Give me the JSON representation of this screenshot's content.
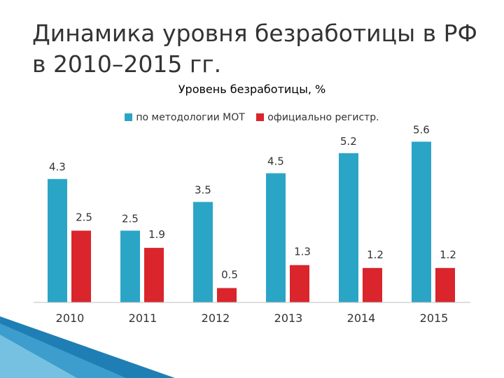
{
  "slide_title": "Динамика уровня безработицы в РФ в 2010–2015 гг.",
  "colors": {
    "series1": "#2ba5c6",
    "series2": "#d9252b",
    "axis": "#bfbfbf",
    "decoration": "#1f7fb4"
  },
  "chart_data": {
    "type": "bar",
    "title": "Уровень безработицы, %",
    "xlabel": "",
    "ylabel": "",
    "categories": [
      "2010",
      "2011",
      "2012",
      "2013",
      "2014",
      "2015"
    ],
    "series": [
      {
        "name": "по методологии МОТ",
        "values": [
          4.3,
          2.5,
          3.5,
          4.5,
          5.2,
          5.6
        ]
      },
      {
        "name": "официально регистр.",
        "values": [
          2.5,
          1.9,
          0.5,
          1.3,
          1.2,
          1.2
        ]
      }
    ],
    "ylim": [
      0,
      6.0
    ],
    "grid": false,
    "legend": "top"
  }
}
